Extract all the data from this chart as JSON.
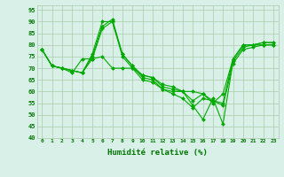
{
  "x": [
    0,
    1,
    2,
    3,
    4,
    5,
    6,
    7,
    8,
    9,
    10,
    11,
    12,
    13,
    14,
    15,
    16,
    17,
    18,
    19,
    20,
    21,
    22,
    23
  ],
  "series": [
    [
      78,
      71,
      70,
      69,
      68,
      76,
      90,
      90,
      76,
      71,
      67,
      66,
      62,
      61,
      60,
      56,
      59,
      55,
      59,
      74,
      80,
      80,
      81,
      81
    ],
    [
      78,
      71,
      70,
      69,
      68,
      75,
      88,
      91,
      76,
      71,
      66,
      65,
      61,
      60,
      60,
      54,
      48,
      57,
      46,
      73,
      79,
      80,
      81,
      81
    ],
    [
      78,
      71,
      70,
      69,
      68,
      74,
      87,
      90,
      75,
      70,
      65,
      64,
      61,
      59,
      57,
      53,
      57,
      56,
      54,
      72,
      78,
      79,
      80,
      80
    ],
    [
      78,
      71,
      70,
      68,
      74,
      74,
      75,
      70,
      70,
      70,
      67,
      66,
      63,
      62,
      60,
      60,
      59,
      56,
      55,
      74,
      80,
      80,
      80,
      80
    ]
  ],
  "line_color": "#00aa00",
  "marker": "D",
  "marker_size": 2,
  "bg_color": "#d8f0e8",
  "grid_color": "#aaccaa",
  "xlabel": "Humidité relative (%)",
  "xlabel_color": "#007700",
  "tick_label_color": "#007700",
  "ylim": [
    40,
    97
  ],
  "yticks": [
    40,
    45,
    50,
    55,
    60,
    65,
    70,
    75,
    80,
    85,
    90,
    95
  ],
  "xticks": [
    0,
    1,
    2,
    3,
    4,
    5,
    6,
    7,
    8,
    9,
    10,
    11,
    12,
    13,
    14,
    15,
    16,
    17,
    18,
    19,
    20,
    21,
    22,
    23
  ]
}
